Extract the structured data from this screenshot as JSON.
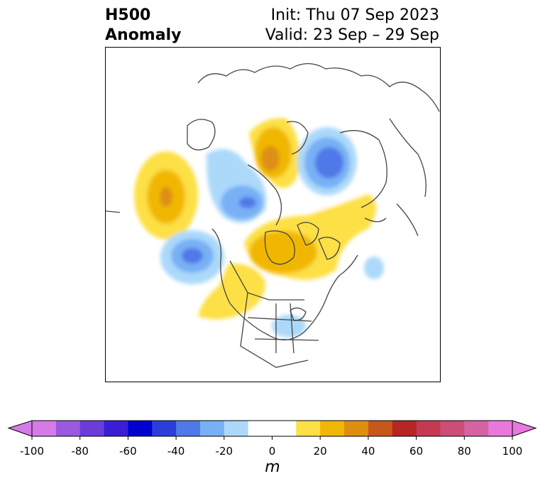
{
  "title": {
    "left_line1": "H500",
    "left_line2": "Anomaly",
    "right_line1": "Init: Thu 07 Sep 2023",
    "right_line2": "Valid: 23 Sep – 29 Sep"
  },
  "colorbar": {
    "unit": "m",
    "ticks": [
      "-100",
      "-80",
      "-60",
      "-40",
      "-20",
      "0",
      "20",
      "40",
      "60",
      "80",
      "100"
    ],
    "levels": [
      -100,
      -90,
      -80,
      -70,
      -60,
      -50,
      -40,
      -30,
      -20,
      -10,
      10,
      20,
      30,
      40,
      50,
      60,
      70,
      80,
      90,
      100
    ],
    "colors": [
      "#d57be8",
      "#9b59e0",
      "#6a3ddb",
      "#3a1ed6",
      "#0000d0",
      "#2b3edc",
      "#4f78e8",
      "#78b0f5",
      "#acd9fa",
      "#ffffff",
      "#fde045",
      "#f1b705",
      "#de8f12",
      "#c8581a",
      "#b52625",
      "#c33a52",
      "#cc4d75",
      "#d663a4",
      "#e878dc"
    ],
    "extend_low_color": "#d57be8",
    "extend_high_color": "#e878dc"
  },
  "map": {
    "region": "North America / Arctic (north polar stereographic)",
    "anomalies": [
      {
        "area": "North Pacific",
        "sign": "positive",
        "max_level": 40
      },
      {
        "area": "Alaska / Bering Sea",
        "sign": "negative",
        "max_level": -40
      },
      {
        "area": "Gulf of Alaska",
        "sign": "negative",
        "max_level": -40
      },
      {
        "area": "Arctic Ocean (East Siberian Sea)",
        "sign": "positive",
        "max_level": 40
      },
      {
        "area": "Kara Sea / Northern Russia",
        "sign": "negative",
        "max_level": -50
      },
      {
        "area": "Canadian Arctic Archipelago / Hudson Bay",
        "sign": "positive",
        "max_level": 30
      },
      {
        "area": "Western Canada / Northern Plains",
        "sign": "positive",
        "max_level": 20
      },
      {
        "area": "North Atlantic",
        "sign": "negative",
        "max_level": -20
      },
      {
        "area": "Central United States",
        "sign": "negative",
        "max_level": -20
      }
    ]
  }
}
